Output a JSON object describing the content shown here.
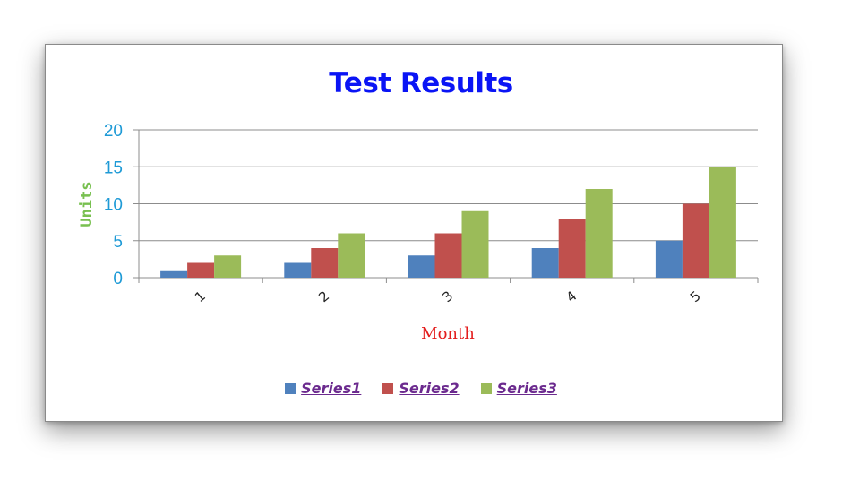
{
  "colors": {
    "title": "#0a14f5",
    "ylabel": "#78c050",
    "xlabel": "#e31c1c",
    "yticks": "#1e9ad6",
    "legend_text": "#6b2a8e",
    "grid": "#8c8c8c"
  },
  "chart_data": {
    "type": "bar",
    "title": "Test Results",
    "xlabel": "Month",
    "ylabel": "Units",
    "categories": [
      "1",
      "2",
      "3",
      "4",
      "5"
    ],
    "series": [
      {
        "name": "Series1",
        "color": "#4f81bd",
        "values": [
          1,
          2,
          3,
          4,
          5
        ]
      },
      {
        "name": "Series2",
        "color": "#c0504d",
        "values": [
          2,
          4,
          6,
          8,
          10
        ]
      },
      {
        "name": "Series3",
        "color": "#9bbb59",
        "values": [
          3,
          6,
          9,
          12,
          15
        ]
      }
    ],
    "ylim": [
      0,
      20
    ],
    "yticks": [
      "0",
      "5",
      "10",
      "15",
      "20"
    ],
    "grid": true,
    "legend_position": "bottom"
  }
}
